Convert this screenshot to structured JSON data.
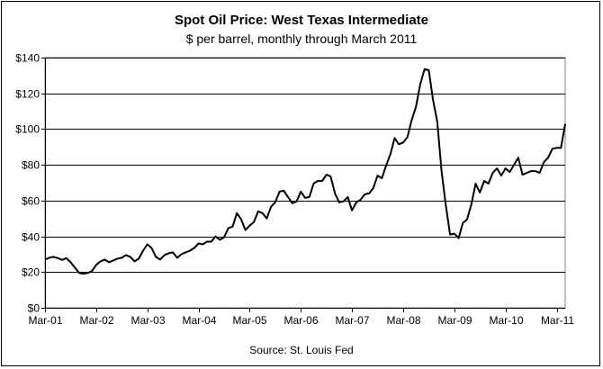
{
  "chart_data": {
    "type": "line",
    "title": "Spot Oil Price: West Texas Intermediate",
    "subtitle": "$ per barrel, monthly through March 2011",
    "source": "Source: St. Louis Fed",
    "ylim": [
      0,
      140
    ],
    "y_ticks": [
      "$0",
      "$20",
      "$40",
      "$60",
      "$80",
      "$100",
      "$120",
      "$140"
    ],
    "x_ticks": [
      "Mar-01",
      "Mar-02",
      "Mar-03",
      "Mar-04",
      "Mar-05",
      "Mar-06",
      "Mar-07",
      "Mar-08",
      "Mar-09",
      "Mar-10",
      "Mar-11"
    ],
    "grid": true,
    "line_color": "#000000",
    "series": [
      {
        "values": [
          27.0,
          28.0,
          28.5,
          27.8,
          26.8,
          27.8,
          25.5,
          22.5,
          19.5,
          19.0,
          19.5,
          20.5,
          24.0,
          26.0,
          27.0,
          25.5,
          26.5,
          27.5,
          28.0,
          29.5,
          28.5,
          26.0,
          27.5,
          32.0,
          35.5,
          33.5,
          28.5,
          27.0,
          29.5,
          30.5,
          31.0,
          28.0,
          30.0,
          31.0,
          32.0,
          33.5,
          36.0,
          35.5,
          37.0,
          37.0,
          40.0,
          38.0,
          39.5,
          44.5,
          45.5,
          53.0,
          49.5,
          43.5,
          46.0,
          48.0,
          54.0,
          53.0,
          50.0,
          56.5,
          59.0,
          65.0,
          65.5,
          62.0,
          58.5,
          59.5,
          65.0,
          61.5,
          62.0,
          69.5,
          71.0,
          71.0,
          74.5,
          73.5,
          64.0,
          59.0,
          59.5,
          62.0,
          54.5,
          59.0,
          60.5,
          63.5,
          64.0,
          67.0,
          74.0,
          72.5,
          79.5,
          86.0,
          95.0,
          91.5,
          92.5,
          95.5,
          105.0,
          112.5,
          125.0,
          133.5,
          133.0,
          116.5,
          104.0,
          76.5,
          57.5,
          41.0,
          41.5,
          39.0,
          47.5,
          49.5,
          58.0,
          69.5,
          64.5,
          71.0,
          69.5,
          75.5,
          78.0,
          74.0,
          78.0,
          76.0,
          80.0,
          84.0,
          74.5,
          75.5,
          76.5,
          76.5,
          75.5,
          81.5,
          84.0,
          89.0,
          89.5,
          89.5,
          103.0
        ]
      }
    ]
  }
}
